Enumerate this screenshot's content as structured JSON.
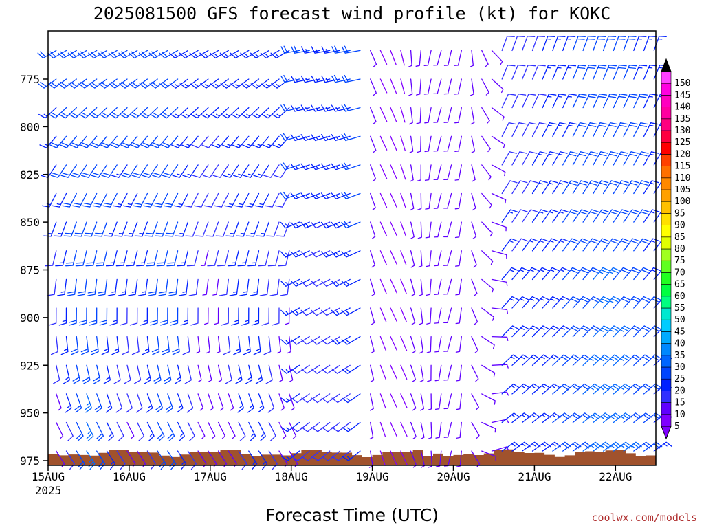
{
  "chart_data": {
    "type": "wind-barb-profile",
    "title": "2025081500 GFS forecast wind profile (kt) for KOKC",
    "xlabel": "Forecast Time (UTC)",
    "ylabel": "",
    "x_ticks": [
      "15AUG",
      "16AUG",
      "17AUG",
      "18AUG",
      "19AUG",
      "20AUG",
      "21AUG",
      "22AUG"
    ],
    "x_year": "2025",
    "x_range_days": [
      0,
      7.5
    ],
    "y_ticks": [
      775,
      800,
      825,
      850,
      875,
      900,
      925,
      950,
      975
    ],
    "y_range": [
      752,
      979
    ],
    "y_scale": "log-pressure",
    "levels_hpa": [
      760,
      775,
      790,
      805,
      820,
      835,
      850,
      865,
      880,
      895,
      910,
      925,
      940,
      955,
      970
    ],
    "time_step_hours": 3,
    "wind_units": "kt",
    "colorbar": {
      "ticks": [
        5,
        10,
        15,
        20,
        25,
        30,
        35,
        40,
        45,
        50,
        55,
        60,
        65,
        70,
        75,
        80,
        85,
        90,
        95,
        100,
        105,
        110,
        115,
        120,
        125,
        130,
        135,
        140,
        145,
        150
      ],
      "colors": [
        "#8000ff",
        "#6000ff",
        "#3030ff",
        "#0020ff",
        "#0044ff",
        "#0066ff",
        "#0088ff",
        "#00aaff",
        "#00ccff",
        "#00e8d0",
        "#00ff80",
        "#00ff40",
        "#20ff20",
        "#60ff20",
        "#a0ff20",
        "#e0ff00",
        "#ffff00",
        "#ffe000",
        "#ffc000",
        "#ffa000",
        "#ff8800",
        "#ff7000",
        "#ff4000",
        "#ff0000",
        "#ff0040",
        "#ff0080",
        "#ff00a0",
        "#ff00c0",
        "#ff00e0",
        "#ff40ff"
      ]
    },
    "terrain_color": "#a0522d",
    "regimes": [
      {
        "period": "15AUG-18AUG",
        "low_levels": "southeast 10-30 kt",
        "upper_levels": "southwest 10-25 kt"
      },
      {
        "period": "18AUG-19AUG",
        "upper_levels": "westerly 15-25 kt"
      },
      {
        "period": "19AUG-20AUG",
        "all_levels": "light south 5-10 kt"
      },
      {
        "period": "20AUG-22AUG",
        "low_levels": "northeast 10-25 kt",
        "upper_levels": "north-northeast 10-20 kt"
      }
    ]
  },
  "credit": "coolwx.com/models"
}
